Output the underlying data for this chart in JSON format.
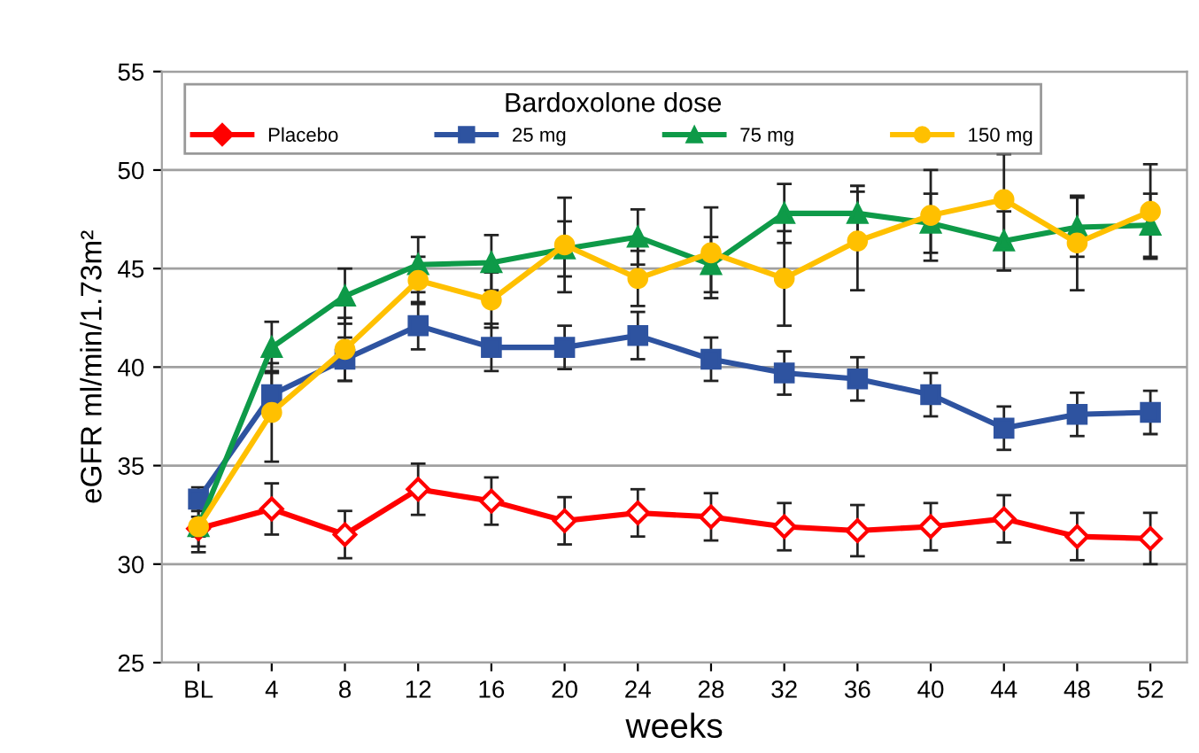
{
  "chart_data": {
    "type": "line",
    "xlabel": "weeks",
    "ylabel": "eGFR ml/min/1.73m²",
    "legend_title": "Bardoxolone dose",
    "categories": [
      "BL",
      "4",
      "8",
      "12",
      "16",
      "20",
      "24",
      "28",
      "32",
      "36",
      "40",
      "44",
      "48",
      "52"
    ],
    "series": [
      {
        "name": "Placebo",
        "color": "#ff0000",
        "marker": "diamond",
        "values": [
          31.8,
          32.8,
          31.5,
          33.8,
          33.2,
          32.2,
          32.6,
          32.4,
          31.9,
          31.7,
          31.9,
          32.3,
          31.4,
          31.3
        ],
        "errors": [
          1.2,
          1.3,
          1.2,
          1.3,
          1.2,
          1.2,
          1.2,
          1.2,
          1.2,
          1.3,
          1.2,
          1.2,
          1.2,
          1.3
        ]
      },
      {
        "name": "25 mg",
        "color": "#2e53a0",
        "marker": "square",
        "values": [
          33.3,
          38.6,
          40.4,
          42.1,
          41.0,
          41.0,
          41.6,
          40.4,
          39.7,
          39.4,
          38.6,
          36.9,
          37.6,
          37.7
        ],
        "errors": [
          0.6,
          1.2,
          1.1,
          1.2,
          1.2,
          1.1,
          1.2,
          1.1,
          1.1,
          1.1,
          1.1,
          1.1,
          1.1,
          1.1
        ]
      },
      {
        "name": "75 mg",
        "color": "#0e9a48",
        "marker": "triangle",
        "values": [
          31.9,
          41.0,
          43.6,
          45.2,
          45.3,
          46.0,
          46.6,
          45.2,
          47.8,
          47.8,
          47.3,
          46.4,
          47.1,
          47.2
        ],
        "errors": [
          0.5,
          1.3,
          1.4,
          1.4,
          1.4,
          1.4,
          1.4,
          1.4,
          1.5,
          1.4,
          1.5,
          1.5,
          1.5,
          1.6
        ]
      },
      {
        "name": "150 mg",
        "color": "#ffc000",
        "marker": "circle",
        "values": [
          31.9,
          37.7,
          40.9,
          44.4,
          43.4,
          46.2,
          44.5,
          45.8,
          44.5,
          46.4,
          47.7,
          48.5,
          46.3,
          47.9
        ],
        "errors": [
          1.0,
          2.5,
          1.6,
          1.2,
          1.4,
          2.4,
          1.4,
          2.3,
          2.4,
          2.5,
          2.3,
          2.3,
          2.4,
          2.4
        ]
      }
    ],
    "ylim": [
      25,
      55
    ],
    "yticks": [
      25,
      30,
      35,
      40,
      45,
      50,
      55
    ],
    "grid": "y",
    "legend": "top",
    "line_style": "solid"
  }
}
